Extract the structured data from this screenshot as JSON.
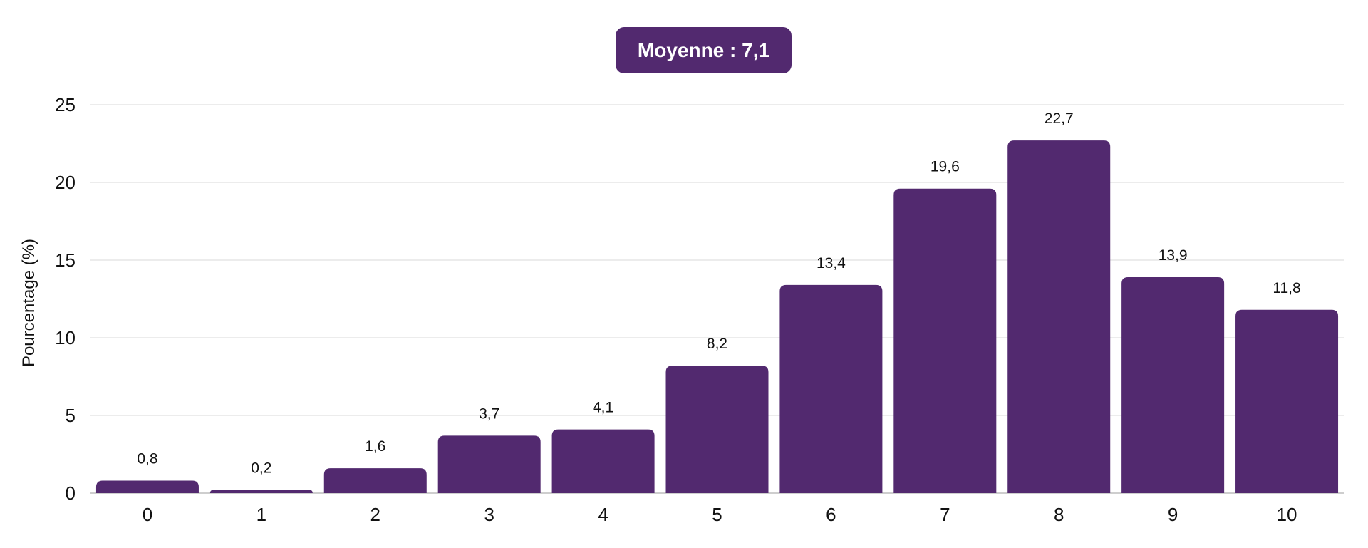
{
  "colors": {
    "bar": "#52296f",
    "badge": "#52296f",
    "grid": "#d9d9d9",
    "axis": "#bdbdbd",
    "text": "#111111"
  },
  "badge": {
    "text": "Moyenne : 7,1"
  },
  "chart_data": {
    "type": "bar",
    "title": "",
    "xlabel": "",
    "ylabel": "Pourcentage (%)",
    "categories": [
      "0",
      "1",
      "2",
      "3",
      "4",
      "5",
      "6",
      "7",
      "8",
      "9",
      "10"
    ],
    "values": [
      0.8,
      0.2,
      1.6,
      3.7,
      4.1,
      8.2,
      13.4,
      19.6,
      22.7,
      13.9,
      11.8
    ],
    "value_labels": [
      "0,8",
      "0,2",
      "1,6",
      "3,7",
      "4,1",
      "8,2",
      "13,4",
      "19,6",
      "22,7",
      "13,9",
      "11,8"
    ],
    "ylim": [
      0,
      25
    ],
    "yticks": [
      0,
      5,
      10,
      15,
      20,
      25
    ],
    "grid": true,
    "legend": "none"
  }
}
